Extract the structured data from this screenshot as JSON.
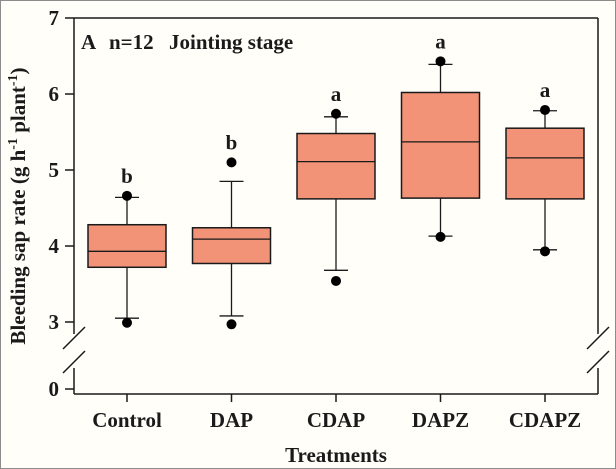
{
  "figure": {
    "background": "#FFFEF8",
    "border_color": "#8C8C8C"
  },
  "chart_data": {
    "type": "box",
    "annotation": {
      "panel": "A",
      "sample_size": "n=12",
      "stage": "Jointing stage"
    },
    "xlabel": "Treatments",
    "ylabel": "Bleeding sap rate (g h⁻¹ plant⁻¹)",
    "ylabel_parts": {
      "prefix": "Bleeding sap rate (g h",
      "sup1": "-1",
      "mid": " plant",
      "sup2": "-1",
      "suffix": ")"
    },
    "y_axis": {
      "ticks": [
        7,
        6,
        5,
        4,
        3,
        0
      ],
      "break_between": [
        0,
        3
      ],
      "upper_range": [
        3,
        7
      ],
      "grid": false
    },
    "categories": [
      "Control",
      "DAP",
      "CDAP",
      "DAPZ",
      "CDAPZ"
    ],
    "series": [
      {
        "category": "Control",
        "letter": "b",
        "whisker_low": 3.05,
        "q1": 3.72,
        "median": 3.93,
        "q3": 4.28,
        "whisker_high": 4.64,
        "outlier_low": 2.99,
        "outlier_high": 4.66
      },
      {
        "category": "DAP",
        "letter": "b",
        "whisker_low": 3.08,
        "q1": 3.77,
        "median": 4.09,
        "q3": 4.24,
        "whisker_high": 4.85,
        "outlier_low": 2.97,
        "outlier_high": 5.1
      },
      {
        "category": "CDAP",
        "letter": "a",
        "whisker_low": 3.68,
        "q1": 4.62,
        "median": 5.11,
        "q3": 5.48,
        "whisker_high": 5.7,
        "outlier_low": 3.54,
        "outlier_high": 5.74
      },
      {
        "category": "DAPZ",
        "letter": "a",
        "whisker_low": 4.13,
        "q1": 4.63,
        "median": 5.37,
        "q3": 6.02,
        "whisker_high": 6.39,
        "outlier_low": 4.12,
        "outlier_high": 6.43
      },
      {
        "category": "CDAPZ",
        "letter": "a",
        "whisker_low": 3.95,
        "q1": 4.62,
        "median": 5.16,
        "q3": 5.55,
        "whisker_high": 5.78,
        "outlier_low": 3.93,
        "outlier_high": 5.79
      }
    ],
    "style": {
      "box_fill": "#F29378",
      "line_color": "#1A1A1A",
      "dot_color": "#000000"
    }
  }
}
